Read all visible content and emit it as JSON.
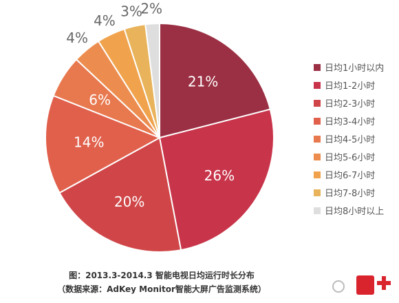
{
  "chart_data": {
    "type": "pie",
    "categories": [
      "日均1小时以内",
      "日均1-2小时",
      "日均2-3小时",
      "日均3-4小时",
      "日均4-5小时",
      "日均5-6小时",
      "日均6-7小时",
      "日均7-8小时",
      "日均8小时以上"
    ],
    "values": [
      21,
      26,
      20,
      14,
      6,
      4,
      4,
      3,
      2
    ],
    "value_labels": [
      "21%",
      "26%",
      "20%",
      "14%",
      "6%",
      "4%",
      "4%",
      "3%",
      "2%"
    ],
    "colors": [
      "#9b3044",
      "#c8344a",
      "#d04648",
      "#e0604c",
      "#e8784e",
      "#ec8d4f",
      "#f0a34c",
      "#e8b35a",
      "#dedede"
    ],
    "legend_position": "right",
    "title": "图：2013.3-2014.3 智能电视日均运行时长分布",
    "subtitle": "（数据来源：AdKey Monitor智能大屏广告监测系统）"
  }
}
